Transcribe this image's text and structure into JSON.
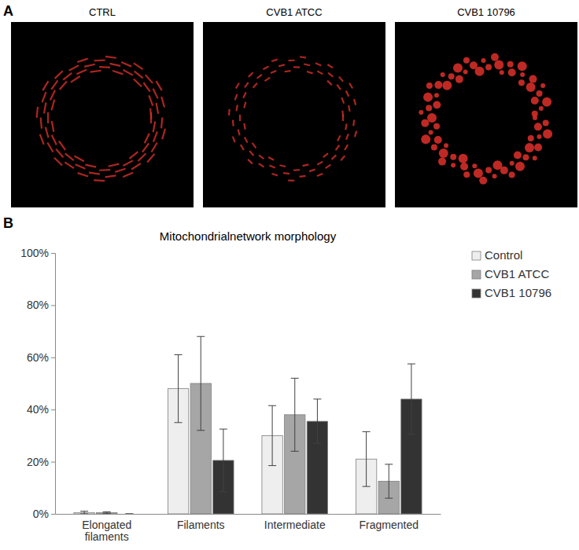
{
  "figure": {
    "panel_labels": [
      "A",
      "B"
    ],
    "image_captions": [
      "CTRL",
      "CVB1 ATCC",
      "CVB1 10796"
    ]
  },
  "chart_data": {
    "type": "bar",
    "title": "Mitochondrialnetwork morphology",
    "categories": [
      "Elongated filaments",
      "Filaments",
      "Intermediate",
      "Fragmented"
    ],
    "series": [
      {
        "name": "Control",
        "color": "#eeeeee",
        "values": [
          0.5,
          48,
          30,
          21
        ],
        "errors": [
          0.5,
          13,
          11.5,
          10.5
        ]
      },
      {
        "name": "CVB1 ATCC",
        "color": "#a6a6a6",
        "values": [
          0.5,
          50,
          38,
          12.5
        ],
        "errors": [
          0.3,
          18,
          14,
          6.5
        ]
      },
      {
        "name": "CVB1 10796",
        "color": "#333333",
        "values": [
          0,
          20.5,
          35.5,
          44
        ],
        "errors": [
          0,
          12,
          8.5,
          13.5
        ]
      }
    ],
    "ylim": [
      0,
      100
    ],
    "yticks": [
      {
        "value": 0,
        "label": "0%"
      },
      {
        "value": 20,
        "label": "20%"
      },
      {
        "value": 40,
        "label": "40%"
      },
      {
        "value": 60,
        "label": "60%"
      },
      {
        "value": 80,
        "label": "80%"
      },
      {
        "value": 100,
        "label": "100%"
      }
    ],
    "grid": false,
    "legend": "right"
  }
}
